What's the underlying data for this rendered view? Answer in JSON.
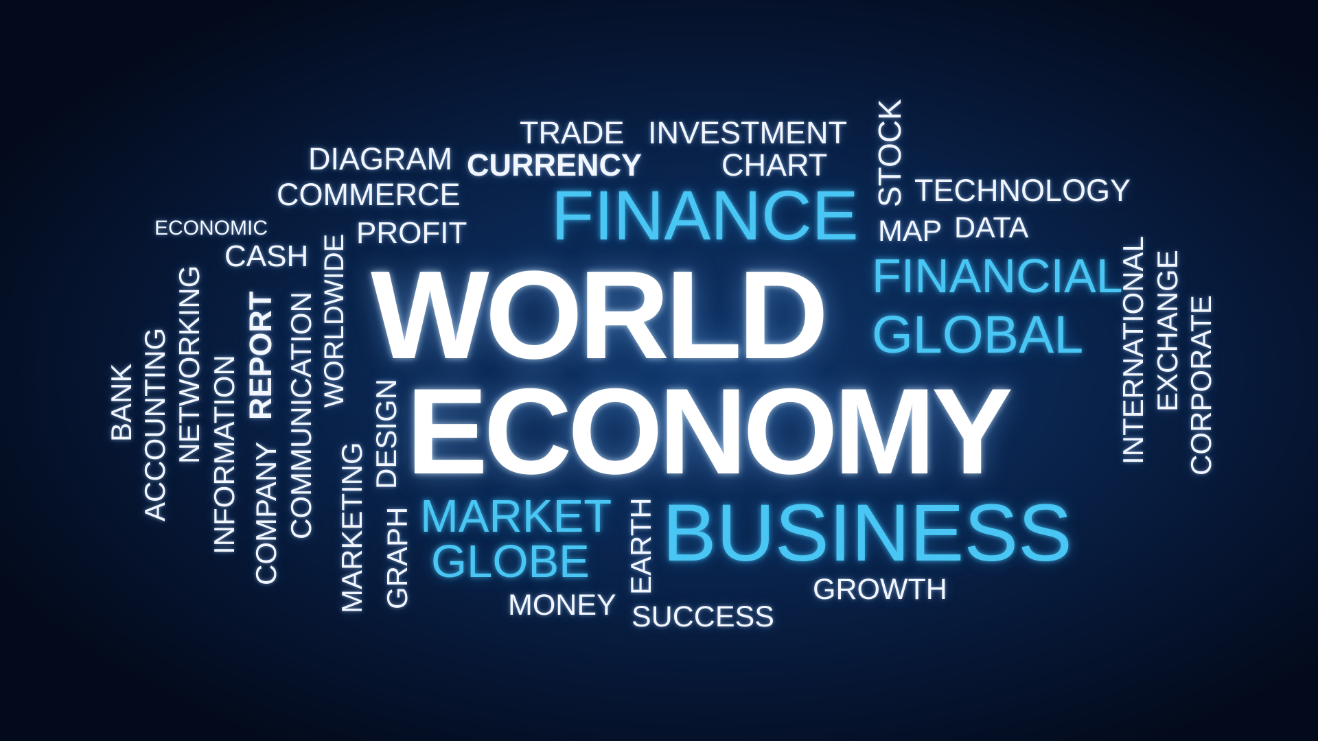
{
  "colors": {
    "background": "#071a3a",
    "white_text": "#f2f7ff",
    "blue_text": "#49c6f4"
  },
  "words": {
    "world": "WORLD",
    "economy": "ECONOMY",
    "finance": "FINANCE",
    "business": "BUSINESS",
    "financial": "FINANCIAL",
    "global": "GLOBAL",
    "market": "MARKET",
    "globe": "GLOBE",
    "trade": "TRADE",
    "investment": "INVESTMENT",
    "currency": "CURRENCY",
    "chart": "CHART",
    "diagram": "DIAGRAM",
    "commerce": "COMMERCE",
    "technology": "TECHNOLOGY",
    "stock": "STOCK",
    "map": "MAP",
    "data": "DATA",
    "economic": "ECONOMIC",
    "profit": "PROFIT",
    "cash": "CASH",
    "worldwide": "WORLDWIDE",
    "communication": "COMMUNICATION",
    "report": "REPORT",
    "company": "COMPANY",
    "information": "INFORMATION",
    "networking": "NETWORKING",
    "accounting": "ACCOUNTING",
    "bank": "BANK",
    "marketing": "MARKETING",
    "design": "DESIGN",
    "graph": "GRAPH",
    "earth": "EARTH",
    "money": "MONEY",
    "success": "SUCCESS",
    "growth": "GROWTH",
    "international": "INTERNATIONAL",
    "exchange": "EXCHANGE",
    "corporate": "CORPORATE"
  }
}
